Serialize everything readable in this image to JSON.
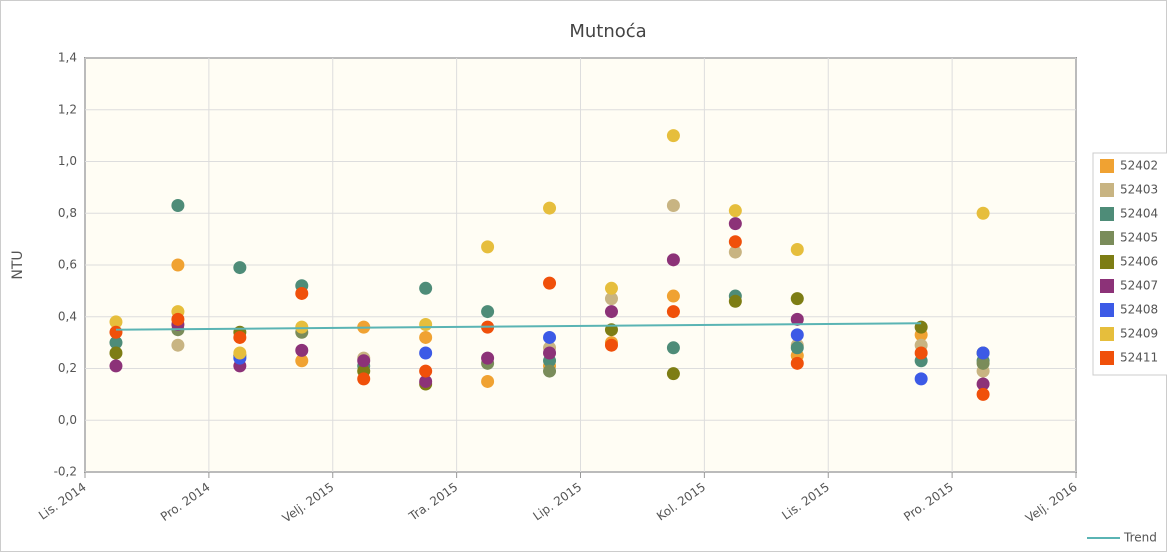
{
  "chart_data": {
    "type": "scatter",
    "title": "Mutnoća",
    "y_label": "NTU",
    "xlim": [
      "2014-10",
      "2016-02"
    ],
    "xticks": [
      {
        "value": "2014-10",
        "label": "Lis. 2014"
      },
      {
        "value": "2014-12",
        "label": "Pro. 2014"
      },
      {
        "value": "2015-02",
        "label": "Velj. 2015"
      },
      {
        "value": "2015-04",
        "label": "Tra. 2015"
      },
      {
        "value": "2015-06",
        "label": "Lip. 2015"
      },
      {
        "value": "2015-08",
        "label": "Kol. 2015"
      },
      {
        "value": "2015-10",
        "label": "Lis. 2015"
      },
      {
        "value": "2015-12",
        "label": "Pro. 2015"
      },
      {
        "value": "2016-02",
        "label": "Velj. 2016"
      }
    ],
    "ylim": [
      -0.2,
      1.4
    ],
    "yticks": [
      {
        "value": -0.2,
        "label": "-0,2"
      },
      {
        "value": 0,
        "label": "0,0"
      },
      {
        "value": 0.2,
        "label": "0,2"
      },
      {
        "value": 0.4,
        "label": "0,4"
      },
      {
        "value": 0.6,
        "label": "0,6"
      },
      {
        "value": 0.8,
        "label": "0,8"
      },
      {
        "value": 1.0,
        "label": "1,0"
      },
      {
        "value": 1.2,
        "label": "1,2"
      },
      {
        "value": 1.4,
        "label": "1,4"
      }
    ],
    "grid": true,
    "series": [
      {
        "name": "52402",
        "color": "#f0a232",
        "x": [
          "2014-11",
          "2015-01",
          "2015-02",
          "2015-03",
          "2015-04",
          "2015-05",
          "2015-06",
          "2015-07",
          "2015-09",
          "2015-11"
        ],
        "values": [
          0.6,
          0.23,
          0.36,
          0.32,
          0.15,
          0.21,
          0.3,
          0.48,
          0.25,
          0.33
        ]
      },
      {
        "name": "52403",
        "color": "#c8b482",
        "x": [
          "2014-11",
          "2014-12",
          "2015-02",
          "2015-05",
          "2015-06",
          "2015-07",
          "2015-08",
          "2015-09",
          "2015-11",
          "2015-12"
        ],
        "values": [
          0.29,
          0.25,
          0.24,
          0.28,
          0.47,
          0.83,
          0.65,
          0.29,
          0.29,
          0.19
        ]
      },
      {
        "name": "52404",
        "color": "#4e8c78",
        "x": [
          "2014-10",
          "2014-11",
          "2014-12",
          "2015-01",
          "2015-02",
          "2015-03",
          "2015-04",
          "2015-05",
          "2015-07",
          "2015-08",
          "2015-09",
          "2015-11",
          "2015-12"
        ],
        "values": [
          0.3,
          0.83,
          0.59,
          0.52,
          0.21,
          0.51,
          0.42,
          0.23,
          0.28,
          0.48,
          0.28,
          0.23,
          0.23
        ]
      },
      {
        "name": "52405",
        "color": "#7a8c5a",
        "x": [
          "2014-11",
          "2014-12",
          "2015-01",
          "2015-04",
          "2015-05",
          "2015-12"
        ],
        "values": [
          0.35,
          0.25,
          0.34,
          0.22,
          0.19,
          0.22
        ]
      },
      {
        "name": "52406",
        "color": "#7d7d14",
        "x": [
          "2014-10",
          "2014-12",
          "2015-02",
          "2015-03",
          "2015-06",
          "2015-07",
          "2015-08",
          "2015-09",
          "2015-11",
          "2015-12"
        ],
        "values": [
          0.26,
          0.34,
          0.19,
          0.14,
          0.35,
          0.18,
          0.46,
          0.47,
          0.36,
          0.26
        ]
      },
      {
        "name": "52407",
        "color": "#8c3278",
        "x": [
          "2014-10",
          "2014-11",
          "2014-12",
          "2015-01",
          "2015-02",
          "2015-03",
          "2015-04",
          "2015-05",
          "2015-06",
          "2015-07",
          "2015-08",
          "2015-09",
          "2015-12"
        ],
        "values": [
          0.21,
          0.37,
          0.21,
          0.27,
          0.23,
          0.15,
          0.24,
          0.26,
          0.42,
          0.62,
          0.76,
          0.39,
          0.14
        ]
      },
      {
        "name": "52408",
        "color": "#3c5ae6",
        "x": [
          "2014-12",
          "2015-03",
          "2015-05",
          "2015-09",
          "2015-11",
          "2015-12"
        ],
        "values": [
          0.24,
          0.26,
          0.32,
          0.33,
          0.16,
          0.26
        ]
      },
      {
        "name": "52409",
        "color": "#e6be3c",
        "x": [
          "2014-10",
          "2014-11",
          "2014-12",
          "2015-01",
          "2015-03",
          "2015-04",
          "2015-05",
          "2015-06",
          "2015-07",
          "2015-08",
          "2015-09",
          "2015-12"
        ],
        "values": [
          0.38,
          0.42,
          0.26,
          0.36,
          0.37,
          0.67,
          0.82,
          0.51,
          1.1,
          0.81,
          0.66,
          0.8
        ]
      },
      {
        "name": "52411",
        "color": "#f0500a",
        "x": [
          "2014-10",
          "2014-11",
          "2014-12",
          "2015-01",
          "2015-02",
          "2015-03",
          "2015-04",
          "2015-05",
          "2015-06",
          "2015-07",
          "2015-08",
          "2015-09",
          "2015-11",
          "2015-12"
        ],
        "values": [
          0.34,
          0.39,
          0.32,
          0.49,
          0.16,
          0.19,
          0.36,
          0.53,
          0.29,
          0.42,
          0.69,
          0.22,
          0.26,
          0.1
        ]
      }
    ],
    "trend": {
      "name": "Trend",
      "color": "#5ab4b4",
      "x": [
        "2014-10",
        "2015-11"
      ],
      "values": [
        0.35,
        0.375
      ]
    }
  }
}
